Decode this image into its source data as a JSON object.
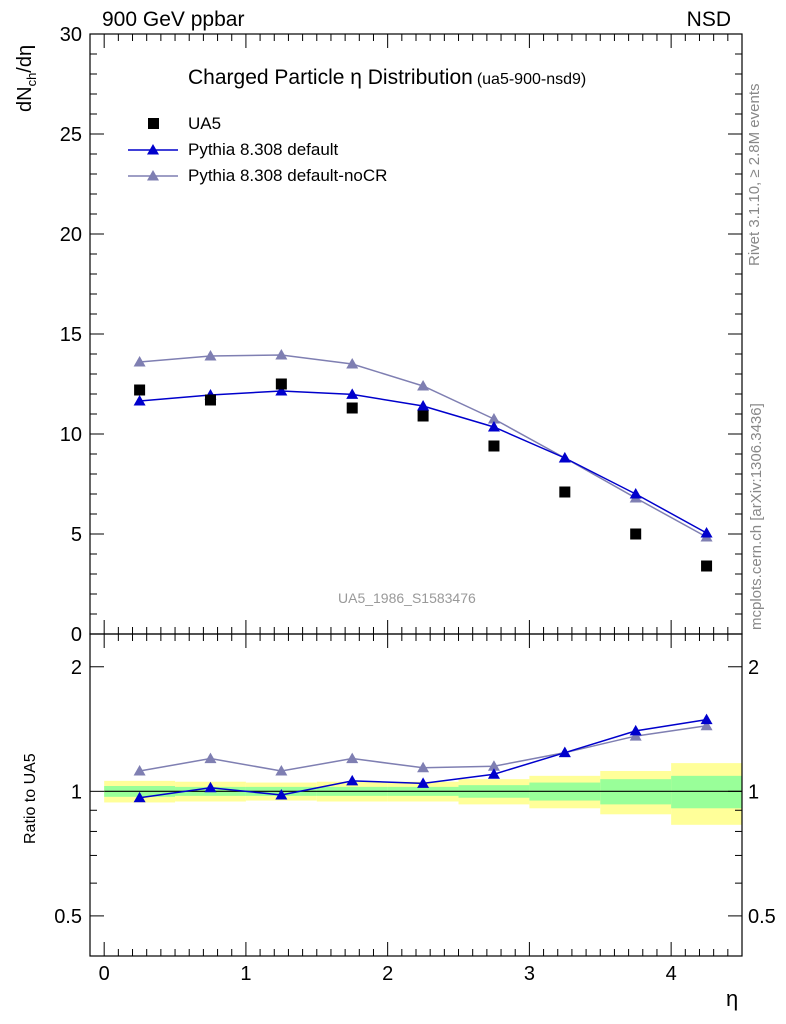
{
  "header": {
    "left": "900 GeV ppbar",
    "right": "NSD"
  },
  "side": {
    "rivet": "Rivet 3.1.10, ≥ 2.8M events",
    "mcplots": "mcplots.cern.ch [arXiv:1306.3436]"
  },
  "chart_data": [
    {
      "type": "scatter",
      "title": "Charged Particle η Distribution",
      "title_id": "(ua5-900-nsd9)",
      "watermark": "UA5_1986_S1583476",
      "ylabel_main": "dN",
      "ylabel_sub": "ch",
      "ylabel_tail": "/dη",
      "ylim": [
        0,
        30
      ],
      "xlim": [
        -0.1,
        4.5
      ],
      "yticks": [
        0,
        5,
        10,
        15,
        20,
        25,
        30
      ],
      "ytick_labels": [
        "0",
        "5",
        "10",
        "15",
        "20",
        "25",
        "30"
      ],
      "legend_position": "top-left",
      "series": [
        {
          "name": "UA5",
          "marker": "square",
          "color": "#000000",
          "x": [
            0.25,
            0.75,
            1.25,
            1.75,
            2.25,
            2.75,
            3.25,
            3.75,
            4.25
          ],
          "y": [
            12.2,
            11.7,
            12.5,
            11.3,
            10.9,
            9.4,
            7.1,
            5.0,
            3.4
          ]
        },
        {
          "name": "Pythia 8.308 default",
          "marker": "triangle",
          "color": "#0000cc",
          "x": [
            0.25,
            0.75,
            1.25,
            1.75,
            2.25,
            2.75,
            3.25,
            3.75,
            4.25
          ],
          "y": [
            11.65,
            11.95,
            12.15,
            11.98,
            11.4,
            10.35,
            8.8,
            7.0,
            5.05
          ]
        },
        {
          "name": "Pythia 8.308 default-noCR",
          "marker": "triangle",
          "color": "#7f7fb2",
          "x": [
            0.25,
            0.75,
            1.25,
            1.75,
            2.25,
            2.75,
            3.25,
            3.75,
            4.25
          ],
          "y": [
            13.6,
            13.9,
            13.95,
            13.5,
            12.4,
            10.75,
            8.8,
            6.8,
            4.85
          ]
        }
      ]
    },
    {
      "type": "line",
      "ylabel": "Ratio to UA5",
      "xlabel": "η",
      "ylim": [
        0.4,
        2.4
      ],
      "xlim": [
        -0.1,
        4.5
      ],
      "xticks": [
        0,
        1,
        2,
        3,
        4
      ],
      "xtick_labels": [
        "0",
        "1",
        "2",
        "3",
        "4"
      ],
      "yticks": [
        0.5,
        1,
        2
      ],
      "ytick_labels": [
        "0.5",
        "1",
        "2"
      ],
      "reference": 1,
      "bands": {
        "x_edges": [
          0,
          0.5,
          1.0,
          1.5,
          2.0,
          2.5,
          3.0,
          3.5,
          4.0,
          4.5
        ],
        "stat": [
          0.03,
          0.025,
          0.025,
          0.025,
          0.025,
          0.035,
          0.05,
          0.07,
          0.09
        ],
        "total": [
          0.06,
          0.055,
          0.05,
          0.055,
          0.055,
          0.07,
          0.09,
          0.12,
          0.17
        ]
      },
      "series": [
        {
          "name": "Pythia 8.308 default",
          "color": "#0000cc",
          "x": [
            0.25,
            0.75,
            1.25,
            1.75,
            2.25,
            2.75,
            3.25,
            3.75,
            4.25
          ],
          "y": [
            0.965,
            1.02,
            0.98,
            1.06,
            1.045,
            1.1,
            1.24,
            1.4,
            1.49
          ]
        },
        {
          "name": "Pythia 8.308 default-noCR",
          "color": "#7f7fb2",
          "x": [
            0.25,
            0.75,
            1.25,
            1.75,
            2.25,
            2.75,
            3.25,
            3.75,
            4.25
          ],
          "y": [
            1.12,
            1.2,
            1.12,
            1.2,
            1.14,
            1.15,
            1.24,
            1.36,
            1.44
          ]
        }
      ]
    }
  ]
}
